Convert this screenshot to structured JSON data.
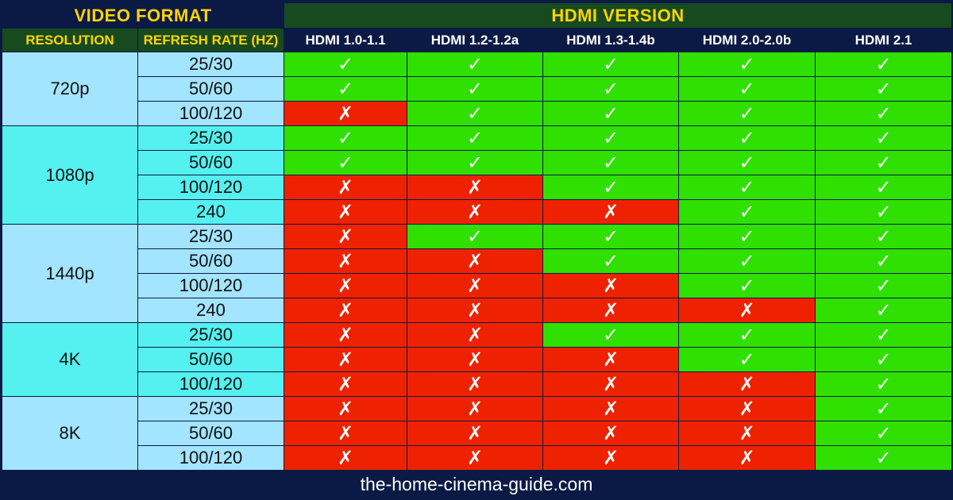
{
  "header": {
    "video_format": "VIDEO FORMAT",
    "hdmi_version": "HDMI VERSION",
    "resolution": "RESOLUTION",
    "refresh_rate": "REFRESH RATE (HZ)"
  },
  "footer": {
    "site": "the-home-cinema-guide.com"
  },
  "colors": {
    "supported": "#2fe000",
    "unsupported": "#ee2200",
    "header_title": "#ffd400",
    "background": "#0b1a44"
  },
  "symbols": {
    "yes": "✓",
    "no": "✗"
  },
  "chart_data": {
    "type": "table",
    "columns": [
      "HDMI 1.0-1.1",
      "HDMI 1.2-1.2a",
      "HDMI 1.3-1.4b",
      "HDMI 2.0-2.0b",
      "HDMI 2.1"
    ],
    "groups": [
      {
        "resolution": "720p",
        "rows": [
          {
            "rate": "25/30",
            "support": [
              true,
              true,
              true,
              true,
              true
            ]
          },
          {
            "rate": "50/60",
            "support": [
              true,
              true,
              true,
              true,
              true
            ]
          },
          {
            "rate": "100/120",
            "support": [
              false,
              true,
              true,
              true,
              true
            ]
          }
        ]
      },
      {
        "resolution": "1080p",
        "rows": [
          {
            "rate": "25/30",
            "support": [
              true,
              true,
              true,
              true,
              true
            ]
          },
          {
            "rate": "50/60",
            "support": [
              true,
              true,
              true,
              true,
              true
            ]
          },
          {
            "rate": "100/120",
            "support": [
              false,
              false,
              true,
              true,
              true
            ]
          },
          {
            "rate": "240",
            "support": [
              false,
              false,
              false,
              true,
              true
            ]
          }
        ]
      },
      {
        "resolution": "1440p",
        "rows": [
          {
            "rate": "25/30",
            "support": [
              false,
              true,
              true,
              true,
              true
            ]
          },
          {
            "rate": "50/60",
            "support": [
              false,
              false,
              true,
              true,
              true
            ]
          },
          {
            "rate": "100/120",
            "support": [
              false,
              false,
              false,
              true,
              true
            ]
          },
          {
            "rate": "240",
            "support": [
              false,
              false,
              false,
              false,
              true
            ]
          }
        ]
      },
      {
        "resolution": "4K",
        "rows": [
          {
            "rate": "25/30",
            "support": [
              false,
              false,
              true,
              true,
              true
            ]
          },
          {
            "rate": "50/60",
            "support": [
              false,
              false,
              false,
              true,
              true
            ]
          },
          {
            "rate": "100/120",
            "support": [
              false,
              false,
              false,
              false,
              true
            ]
          }
        ]
      },
      {
        "resolution": "8K",
        "rows": [
          {
            "rate": "25/30",
            "support": [
              false,
              false,
              false,
              false,
              true
            ]
          },
          {
            "rate": "50/60",
            "support": [
              false,
              false,
              false,
              false,
              true
            ]
          },
          {
            "rate": "100/120",
            "support": [
              false,
              false,
              false,
              false,
              true
            ]
          }
        ]
      }
    ]
  }
}
